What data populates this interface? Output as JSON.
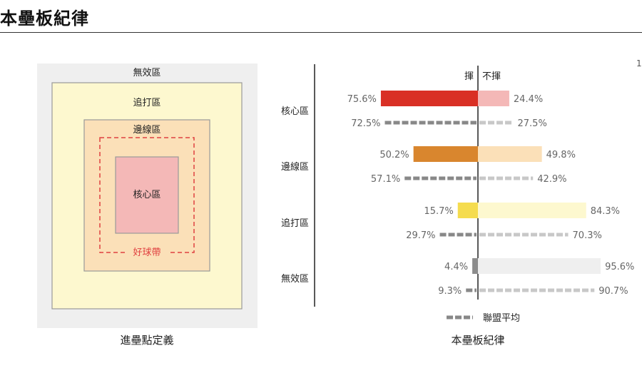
{
  "page_title": "本壘板紀律",
  "corner_mark": "1",
  "zone_diagram": {
    "caption": "進壘點定義",
    "outer_zone": "無效區",
    "chase_zone": "追打區",
    "edge_zone": "邊線區",
    "heart_zone": "核心區",
    "strike_zone": "好球帶",
    "colors": {
      "outer": "#efefef",
      "chase": "#fdf8cf",
      "edge": "#fbe0b8",
      "heart": "#f4b8b7",
      "strike_border": "#e04040",
      "border": "#999999"
    }
  },
  "chart_data": {
    "type": "bar",
    "caption": "本壘板紀律",
    "header_swing": "揮",
    "header_take": "不揮",
    "legend_league": "聯盟平均",
    "categories": [
      "核心區",
      "邊線區",
      "追打區",
      "無效區"
    ],
    "series": [
      {
        "name": "揮",
        "values": [
          75.6,
          50.2,
          15.7,
          4.4
        ],
        "labels": [
          "75.6%",
          "50.2%",
          "15.7%",
          "4.4%"
        ]
      },
      {
        "name": "不揮",
        "values": [
          24.4,
          49.8,
          84.3,
          95.6
        ],
        "labels": [
          "24.4%",
          "49.8%",
          "84.3%",
          "95.6%"
        ]
      }
    ],
    "league_average": {
      "swing": [
        72.5,
        57.1,
        29.7,
        9.3
      ],
      "take": [
        27.5,
        42.9,
        70.3,
        90.7
      ],
      "swing_labels": [
        "72.5%",
        "57.1%",
        "29.7%",
        "9.3%"
      ],
      "take_labels": [
        "27.5%",
        "42.9%",
        "70.3%",
        "90.7%"
      ]
    },
    "colors": {
      "swing": [
        "#d93025",
        "#d9862e",
        "#f5dc4e",
        "#8c8c8c"
      ],
      "take": [
        "#f4b8b7",
        "#fbe0b8",
        "#fdf8cf",
        "#efefef"
      ],
      "league_swing": "#888888",
      "league_take": "#c8c8c8"
    }
  }
}
